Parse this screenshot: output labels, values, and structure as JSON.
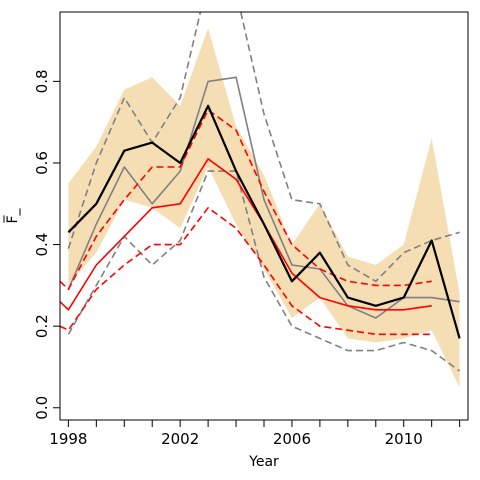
{
  "chart_data": {
    "type": "line",
    "title": "",
    "xlabel": "Year",
    "ylabel": "F̅_",
    "xlim": [
      1997.7,
      2012.3
    ],
    "ylim": [
      -0.03,
      0.97
    ],
    "x_ticks": [
      1998,
      2002,
      2006,
      2010
    ],
    "x_minor_ticks": [
      1998,
      1999,
      2000,
      2001,
      2002,
      2003,
      2004,
      2005,
      2006,
      2007,
      2008,
      2009,
      2010,
      2011,
      2012
    ],
    "y_ticks": [
      0.0,
      0.2,
      0.4,
      0.6,
      0.8
    ],
    "y_tick_labels": [
      "0.0",
      "0.2",
      "0.4",
      "0.6",
      "0.8"
    ],
    "grid": false,
    "legend": "none",
    "band": {
      "color": "#f5deb3",
      "x": [
        1998,
        1999,
        2000,
        2001,
        2002,
        2003,
        2004,
        2005,
        2006,
        2007,
        2008,
        2009,
        2010,
        2011,
        2012
      ],
      "upper": [
        0.55,
        0.64,
        0.78,
        0.81,
        0.74,
        0.93,
        0.69,
        0.57,
        0.4,
        0.5,
        0.37,
        0.35,
        0.4,
        0.66,
        0.28
      ],
      "lower": [
        0.3,
        0.38,
        0.51,
        0.49,
        0.44,
        0.59,
        0.45,
        0.34,
        0.22,
        0.27,
        0.17,
        0.16,
        0.17,
        0.19,
        0.05
      ]
    },
    "series": [
      {
        "style": "solid",
        "color": "#000000",
        "width": 2.2,
        "x": [
          1998,
          1999,
          2000,
          2001,
          2002,
          2003,
          2004,
          2005,
          2006,
          2007,
          2008,
          2009,
          2010,
          2011,
          2012
        ],
        "y": [
          0.43,
          0.5,
          0.63,
          0.65,
          0.6,
          0.74,
          0.58,
          0.45,
          0.31,
          0.38,
          0.27,
          0.25,
          0.27,
          0.41,
          0.17
        ]
      },
      {
        "style": "solid",
        "color": "#808080",
        "width": 1.6,
        "x": [
          1998,
          1999,
          2000,
          2001,
          2002,
          2003,
          2004,
          2005,
          2006,
          2007,
          2008,
          2009,
          2010,
          2011,
          2012
        ],
        "y": [
          0.29,
          0.45,
          0.59,
          0.5,
          0.58,
          0.8,
          0.81,
          0.51,
          0.35,
          0.34,
          0.25,
          0.22,
          0.27,
          0.27,
          0.26
        ]
      },
      {
        "style": "dashed",
        "color": "#808080",
        "width": 1.6,
        "x": [
          1998,
          1999,
          2000,
          2001,
          2002,
          2003,
          2004,
          2005,
          2006,
          2007,
          2008,
          2009,
          2010,
          2011,
          2012
        ],
        "y": [
          0.39,
          0.6,
          0.76,
          0.65,
          0.76,
          1.05,
          1.02,
          0.72,
          0.51,
          0.5,
          0.35,
          0.31,
          0.38,
          0.41,
          0.43
        ]
      },
      {
        "style": "dashed",
        "color": "#808080",
        "width": 1.6,
        "x": [
          1998,
          1999,
          2000,
          2001,
          2002,
          2003,
          2004,
          2005,
          2006,
          2007,
          2008,
          2009,
          2010,
          2011,
          2012
        ],
        "y": [
          0.18,
          0.3,
          0.42,
          0.35,
          0.41,
          0.58,
          0.58,
          0.32,
          0.2,
          0.17,
          0.14,
          0.14,
          0.16,
          0.14,
          0.09
        ]
      },
      {
        "style": "solid",
        "color": "#ff0000",
        "width": 1.6,
        "x": [
          1997.7,
          1998,
          1999,
          2000,
          2001,
          2002,
          2003,
          2004,
          2005,
          2006,
          2007,
          2008,
          2009,
          2010,
          2011
        ],
        "y": [
          0.26,
          0.24,
          0.35,
          0.42,
          0.49,
          0.5,
          0.61,
          0.56,
          0.45,
          0.33,
          0.27,
          0.25,
          0.24,
          0.24,
          0.25
        ]
      },
      {
        "style": "dashed",
        "color": "#ff0000",
        "width": 1.6,
        "x": [
          1997.7,
          1998,
          1999,
          2000,
          2001,
          2002,
          2003,
          2004,
          2005,
          2006,
          2007,
          2008,
          2009,
          2010,
          2011
        ],
        "y": [
          0.31,
          0.29,
          0.42,
          0.51,
          0.59,
          0.59,
          0.73,
          0.68,
          0.53,
          0.4,
          0.34,
          0.31,
          0.3,
          0.3,
          0.31
        ]
      },
      {
        "style": "dashed",
        "color": "#ff0000",
        "width": 1.6,
        "x": [
          1997.7,
          1998,
          1999,
          2000,
          2001,
          2002,
          2003,
          2004,
          2005,
          2006,
          2007,
          2008,
          2009,
          2010,
          2011
        ],
        "y": [
          0.2,
          0.19,
          0.29,
          0.35,
          0.4,
          0.4,
          0.49,
          0.44,
          0.35,
          0.25,
          0.2,
          0.19,
          0.18,
          0.18,
          0.18
        ]
      }
    ]
  }
}
